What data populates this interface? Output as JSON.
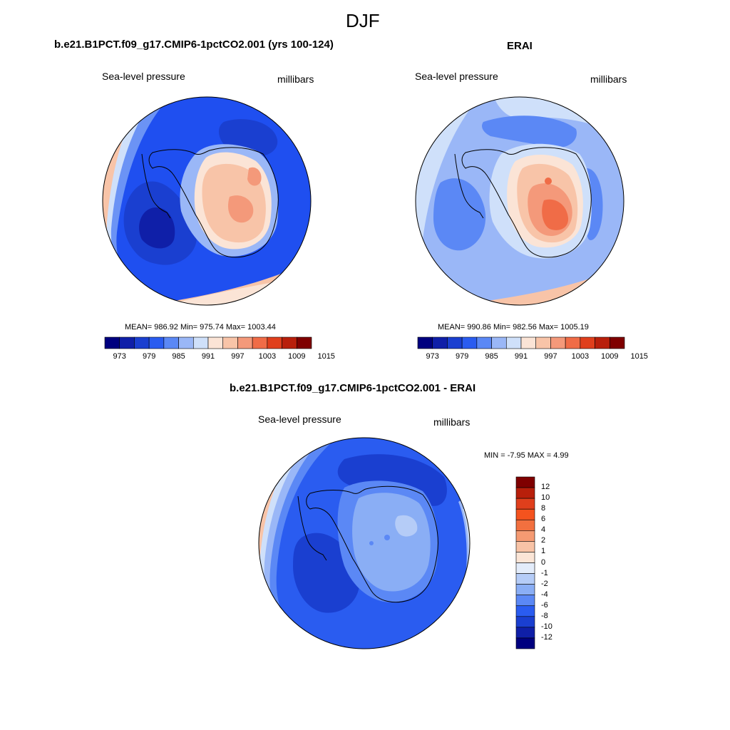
{
  "figure": {
    "title": "DJF"
  },
  "panels": [
    {
      "id": "model",
      "title": "b.e21.B1PCT.f09_g17.CMIP6-1pctCO2.001 (yrs 100-124)",
      "variable": "Sea-level pressure",
      "units": "millibars",
      "stats": {
        "mean": "986.92",
        "min": "975.74",
        "max": "1003.44",
        "text": "MEAN= 986.92  Min= 975.74  Max= 1003.44"
      },
      "colorbar": {
        "ticks": [
          "973",
          "979",
          "985",
          "991",
          "997",
          "1003",
          "1009",
          "1015"
        ],
        "colors": [
          "#00007f",
          "#0f1fa8",
          "#1a3fd0",
          "#2a5cf0",
          "#5b88f5",
          "#9ab7f7",
          "#cfe0fa",
          "#fbe4d6",
          "#f8c4a8",
          "#f4997a",
          "#f06c47",
          "#e03f1c",
          "#b81f0b",
          "#7f0000"
        ]
      }
    },
    {
      "id": "obs",
      "title": "ERAI",
      "variable": "Sea-level pressure",
      "units": "millibars",
      "stats": {
        "mean": "990.86",
        "min": "982.56",
        "max": "1005.19",
        "text": "MEAN= 990.86  Min= 982.56  Max= 1005.19"
      },
      "colorbar": {
        "ticks": [
          "973",
          "979",
          "985",
          "991",
          "997",
          "1003",
          "1009",
          "1015"
        ],
        "colors": [
          "#00007f",
          "#0f1fa8",
          "#1a3fd0",
          "#2a5cf0",
          "#5b88f5",
          "#9ab7f7",
          "#cfe0fa",
          "#fbe4d6",
          "#f8c4a8",
          "#f4997a",
          "#f06c47",
          "#e03f1c",
          "#b81f0b",
          "#7f0000"
        ]
      }
    },
    {
      "id": "diff",
      "title": "b.e21.B1PCT.f09_g17.CMIP6-1pctCO2.001 - ERAI",
      "variable": "Sea-level pressure",
      "units": "millibars",
      "stats": {
        "min": "-7.95",
        "max": "4.99",
        "text": "MIN =  -7.95 MAX =   4.99"
      },
      "colorbar": {
        "ticks": [
          "12",
          "10",
          "8",
          "6",
          "4",
          "2",
          "1",
          "0",
          "-1",
          "-2",
          "-4",
          "-6",
          "-8",
          "-10",
          "-12"
        ],
        "colors": [
          "#7f0000",
          "#b81f0b",
          "#e03f1c",
          "#f4531e",
          "#f2703f",
          "#f59a72",
          "#f8c3a6",
          "#fbe5d6",
          "#e3ecfa",
          "#b5ccf7",
          "#8aaef5",
          "#5b88f5",
          "#2a5cf0",
          "#1a3fd0",
          "#0f1fa8",
          "#00007f"
        ]
      }
    }
  ]
}
